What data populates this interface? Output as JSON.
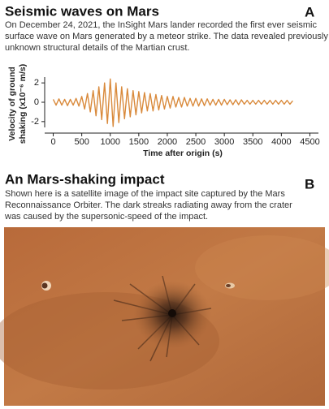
{
  "chart_data": {
    "type": "line",
    "panel_letter": "A",
    "title": "Seismic waves on Mars",
    "description_lines": [
      "On December 24, 2021, the InSight Mars lander recorded the first ever seismic",
      "surface wave on Mars generated by a meteor strike. The data revealed previously",
      "unknown structural details of the Martian crust."
    ],
    "y_label_lines": [
      "Velocity of ground",
      "shaking (x10⁻⁶ m/s)"
    ],
    "x_label": "Time after origin (s)",
    "x": [
      0,
      50,
      100,
      150,
      200,
      250,
      300,
      350,
      400,
      450,
      500,
      550,
      600,
      650,
      700,
      750,
      800,
      850,
      900,
      950,
      1000,
      1050,
      1100,
      1150,
      1200,
      1250,
      1300,
      1350,
      1400,
      1450,
      1500,
      1550,
      1600,
      1650,
      1700,
      1750,
      1800,
      1850,
      1900,
      1950,
      2000,
      2050,
      2100,
      2150,
      2200,
      2250,
      2300,
      2350,
      2400,
      2450,
      2500,
      2550,
      2600,
      2650,
      2700,
      2750,
      2800,
      2850,
      2900,
      2950,
      3000,
      3050,
      3100,
      3150,
      3200,
      3250,
      3300,
      3350,
      3400,
      3450,
      3500,
      3550,
      3600,
      3650,
      3700,
      3750,
      3800,
      3850,
      3900,
      3950,
      4000,
      4050,
      4100,
      4150,
      4200
    ],
    "series": [
      {
        "name": "Ground velocity",
        "color": "#d98a3c",
        "values": [
          0.3,
          -0.3,
          0.35,
          -0.3,
          0.3,
          -0.35,
          0.3,
          -0.3,
          0.4,
          -0.4,
          0.6,
          -0.7,
          0.9,
          -1.0,
          1.2,
          -1.4,
          1.6,
          -1.8,
          2.0,
          -2.2,
          2.4,
          -2.5,
          2.0,
          -2.1,
          1.6,
          -1.7,
          1.4,
          -1.5,
          1.2,
          -1.3,
          1.1,
          -1.1,
          1.0,
          -0.9,
          0.9,
          -0.9,
          0.8,
          -0.8,
          0.7,
          -0.7,
          0.6,
          -0.6,
          0.6,
          -0.5,
          0.5,
          -0.5,
          0.5,
          -0.4,
          0.4,
          -0.4,
          0.4,
          -0.4,
          0.35,
          -0.35,
          0.35,
          -0.3,
          0.3,
          -0.3,
          0.3,
          -0.3,
          0.3,
          -0.25,
          0.25,
          -0.25,
          0.25,
          -0.25,
          0.25,
          -0.2,
          0.2,
          -0.2,
          0.2,
          -0.2,
          0.2,
          -0.2,
          0.2,
          -0.2,
          0.2,
          -0.2,
          0.2,
          -0.2,
          0.2,
          -0.2,
          0.2,
          -0.2,
          0.15
        ]
      }
    ],
    "xlim": [
      -150,
      4650
    ],
    "xticks": [
      0,
      500,
      1000,
      1500,
      2000,
      2500,
      3000,
      3500,
      4000,
      4500
    ],
    "ylim": [
      -2.6,
      2.6
    ],
    "yticks": [
      2,
      0,
      -2
    ]
  },
  "image_panel": {
    "panel_letter": "B",
    "title": "An Mars-shaking impact",
    "description_lines": [
      "Shown here is a satellite image of the impact site captured by the Mars",
      "Reconnaissance Orbiter. The dark streaks radiating away from the crater",
      "was caused by the supersonic-speed of the impact."
    ]
  }
}
